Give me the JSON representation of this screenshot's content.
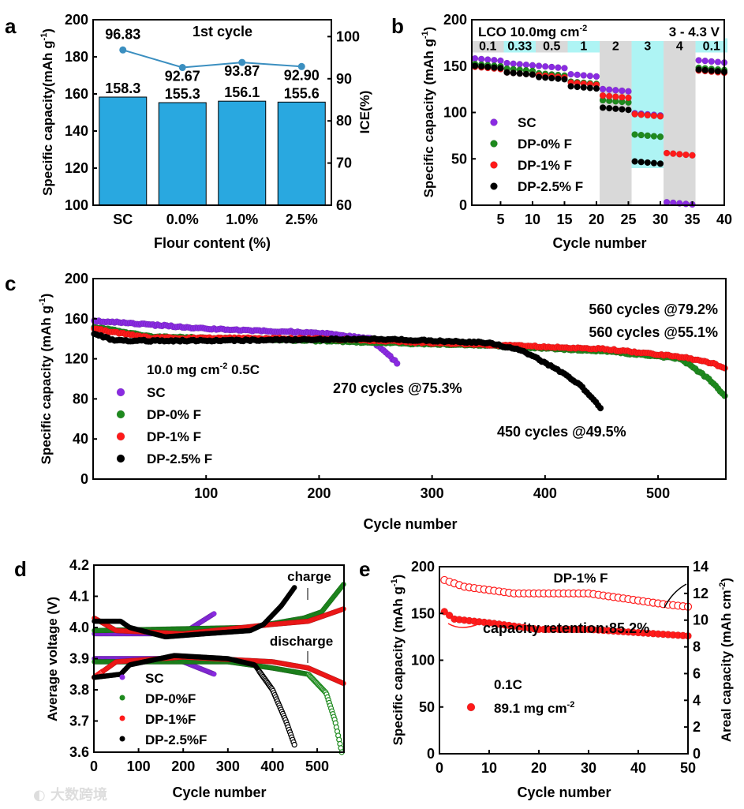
{
  "watermark": "大数跨境",
  "colors": {
    "SC": "#8a2be2",
    "DP0": "#1e8a1e",
    "DP1": "#ff1a1a",
    "DP25": "#000000",
    "bar": "#29a8e0",
    "ice": "#3b8fc0",
    "cyan": "#aef4f4",
    "gray": "#d9d9d9"
  },
  "chart_data": [
    {
      "panel": "a",
      "type": "bar",
      "categories": [
        "SC",
        "0.0%",
        "1.0%",
        "2.5%"
      ],
      "series": [
        {
          "name": "Specific capacity",
          "values": [
            158.3,
            155.3,
            156.1,
            155.6
          ],
          "labels": [
            "158.3",
            "155.3",
            "156.1",
            "155.6"
          ]
        },
        {
          "name": "ICE",
          "type": "line",
          "values": [
            96.83,
            92.67,
            93.87,
            92.9
          ],
          "labels": [
            "96.83",
            "92.67",
            "93.87",
            "92.90"
          ]
        }
      ],
      "annotation": "1st cycle",
      "xlabel": "Flour content (%)",
      "ylabel": "Specific capacity(mAh g-1)",
      "y2label": "ICE(%)",
      "ylim": [
        100,
        200
      ],
      "y2lim": [
        60,
        104
      ],
      "yticks": [
        "100",
        "120",
        "140",
        "160",
        "180",
        "200"
      ],
      "y2ticks": [
        "60",
        "70",
        "80",
        "90",
        "100"
      ]
    },
    {
      "panel": "b",
      "type": "scatter",
      "title": "LCO  10.0mg cm-2",
      "voltage": "3 - 4.3 V",
      "rates": [
        "0.1",
        "0.33",
        "0.5",
        "1",
        "2",
        "3",
        "4",
        "0.1"
      ],
      "series": [
        {
          "name": "SC",
          "key": "SC",
          "values": [
            157,
            152,
            149,
            140,
            124,
            98,
            2,
            155
          ]
        },
        {
          "name": "DP-0% F",
          "key": "DP0",
          "values": [
            151,
            146,
            141,
            132,
            112,
            75,
            null,
            147
          ]
        },
        {
          "name": "DP-1% F",
          "key": "DP1",
          "values": [
            148,
            142,
            139,
            131,
            117,
            97,
            55,
            144
          ]
        },
        {
          "name": "DP-2.5% F",
          "key": "DP25",
          "values": [
            149,
            142,
            137,
            127,
            104,
            46,
            null,
            145
          ]
        }
      ],
      "xlabel": "Cycle number",
      "ylabel": "Specific capacity (mAh g-1)",
      "xlim": [
        0.5,
        40
      ],
      "ylim": [
        0,
        200
      ],
      "xticks": [
        "5",
        "10",
        "15",
        "20",
        "25",
        "30",
        "35",
        "40"
      ],
      "yticks": [
        "0",
        "50",
        "100",
        "150",
        "200"
      ]
    },
    {
      "panel": "c",
      "type": "scatter",
      "condition": "10.0 mg cm-2  0.5C",
      "series": [
        {
          "name": "SC",
          "key": "SC",
          "points": [
            [
              1,
              158
            ],
            [
              100,
              150
            ],
            [
              200,
              146
            ],
            [
              245,
              140
            ],
            [
              270,
              115
            ]
          ]
        },
        {
          "name": "DP-0% F",
          "key": "DP0",
          "points": [
            [
              1,
              152
            ],
            [
              50,
              142
            ],
            [
              200,
              138
            ],
            [
              350,
              133
            ],
            [
              450,
              128
            ],
            [
              520,
              120
            ],
            [
              545,
              100
            ],
            [
              560,
              82
            ]
          ]
        },
        {
          "name": "DP-1% F",
          "key": "DP1",
          "points": [
            [
              1,
              150
            ],
            [
              50,
              141
            ],
            [
              200,
              140
            ],
            [
              350,
              134
            ],
            [
              450,
              130
            ],
            [
              520,
              122
            ],
            [
              550,
              115
            ],
            [
              560,
              110
            ]
          ]
        },
        {
          "name": "DP-2.5% F",
          "key": "DP25",
          "points": [
            [
              1,
              145
            ],
            [
              20,
              138
            ],
            [
              100,
              138
            ],
            [
              250,
              140
            ],
            [
              350,
              136
            ],
            [
              380,
              128
            ],
            [
              410,
              110
            ],
            [
              430,
              95
            ],
            [
              450,
              70
            ]
          ]
        }
      ],
      "annotations": [
        {
          "text": "560 cycles @79.2%",
          "key": "DP1"
        },
        {
          "text": "560 cycles @55.1%",
          "key": "DP0"
        },
        {
          "text": "270 cycles @75.3%",
          "key": "SC"
        },
        {
          "text": "450 cycles @49.5%",
          "key": "DP25"
        }
      ],
      "xlabel": "Cycle number",
      "ylabel": "Specific capacity (mAh g-1)",
      "xlim": [
        0,
        560
      ],
      "ylim": [
        0,
        200
      ],
      "xticks": [
        "100",
        "200",
        "300",
        "400",
        "500"
      ],
      "yticks": [
        "0",
        "40",
        "80",
        "120",
        "160",
        "200"
      ]
    },
    {
      "panel": "d",
      "type": "scatter",
      "series": [
        {
          "name": "SC",
          "key": "SC",
          "charge": [
            [
              1,
              3.98
            ],
            [
              200,
              3.98
            ],
            [
              220,
              4.0
            ],
            [
              270,
              4.045
            ]
          ],
          "discharge": [
            [
              1,
              3.9
            ],
            [
              150,
              3.9
            ],
            [
              200,
              3.89
            ],
            [
              270,
              3.85
            ]
          ]
        },
        {
          "name": "DP-0%F",
          "key": "DP0",
          "charge": [
            [
              1,
              3.99
            ],
            [
              350,
              4.0
            ],
            [
              470,
              4.03
            ],
            [
              510,
              4.05
            ],
            [
              560,
              4.14
            ]
          ],
          "discharge": [
            [
              1,
              3.89
            ],
            [
              300,
              3.89
            ],
            [
              400,
              3.87
            ],
            [
              480,
              3.85
            ],
            [
              520,
              3.79
            ],
            [
              540,
              3.7
            ],
            [
              555,
              3.6
            ]
          ]
        },
        {
          "name": "DP-1%F",
          "key": "DP1",
          "charge": [
            [
              1,
              4.03
            ],
            [
              50,
              3.99
            ],
            [
              200,
              3.98
            ],
            [
              400,
              4.01
            ],
            [
              480,
              4.02
            ],
            [
              560,
              4.06
            ]
          ],
          "discharge": [
            [
              1,
              3.84
            ],
            [
              50,
              3.89
            ],
            [
              200,
              3.905
            ],
            [
              400,
              3.89
            ],
            [
              480,
              3.87
            ],
            [
              560,
              3.82
            ]
          ]
        },
        {
          "name": "DP-2.5%F",
          "key": "DP25",
          "charge": [
            [
              1,
              4.02
            ],
            [
              60,
              4.02
            ],
            [
              80,
              4.0
            ],
            [
              160,
              3.97
            ],
            [
              250,
              3.98
            ],
            [
              350,
              3.99
            ],
            [
              380,
              4.01
            ],
            [
              420,
              4.07
            ],
            [
              450,
              4.13
            ]
          ],
          "discharge": [
            [
              1,
              3.84
            ],
            [
              60,
              3.85
            ],
            [
              80,
              3.88
            ],
            [
              180,
              3.91
            ],
            [
              300,
              3.9
            ],
            [
              360,
              3.88
            ],
            [
              400,
              3.8
            ],
            [
              430,
              3.7
            ],
            [
              450,
              3.62
            ]
          ]
        }
      ],
      "annotations": [
        "charge",
        "discharge"
      ],
      "xlabel": "Cycle number",
      "ylabel": "Average  voltage (V)",
      "xlim": [
        0,
        560
      ],
      "ylim": [
        3.6,
        4.2
      ],
      "xticks": [
        "0",
        "100",
        "200",
        "300",
        "400",
        "500"
      ],
      "yticks": [
        "3.6",
        "3.7",
        "3.8",
        "3.9",
        "4.0",
        "4.1",
        "4.2"
      ]
    },
    {
      "panel": "e",
      "type": "scatter",
      "title": "DP-1% F",
      "rate": "0.1C",
      "loading": "89.1 mg cm-2",
      "retention": "capacity retention:85.2%",
      "series": [
        {
          "name": "Specific capacity",
          "points": [
            [
              1,
              152
            ],
            [
              3,
              144
            ],
            [
              10,
              140
            ],
            [
              20,
              133
            ],
            [
              30,
              133
            ],
            [
              50,
              126
            ]
          ]
        },
        {
          "name": "Areal capacity",
          "axis": "right",
          "points": [
            [
              1,
              13
            ],
            [
              5,
              12.5
            ],
            [
              15,
              12
            ],
            [
              30,
              12
            ],
            [
              45,
              11.2
            ],
            [
              50,
              11
            ]
          ]
        }
      ],
      "xlabel": "Cycle number",
      "ylabel": "Specific capacity (mAh g-1)",
      "y2label": "Areal capacity (mAh cm-2)",
      "xlim": [
        0,
        50
      ],
      "ylim": [
        0,
        200
      ],
      "y2lim": [
        0,
        14
      ],
      "xticks": [
        "0",
        "10",
        "20",
        "30",
        "40",
        "50"
      ],
      "yticks": [
        "0",
        "50",
        "100",
        "150",
        "200"
      ],
      "y2ticks": [
        "0",
        "2",
        "4",
        "6",
        "8",
        "10",
        "12",
        "14"
      ]
    }
  ]
}
